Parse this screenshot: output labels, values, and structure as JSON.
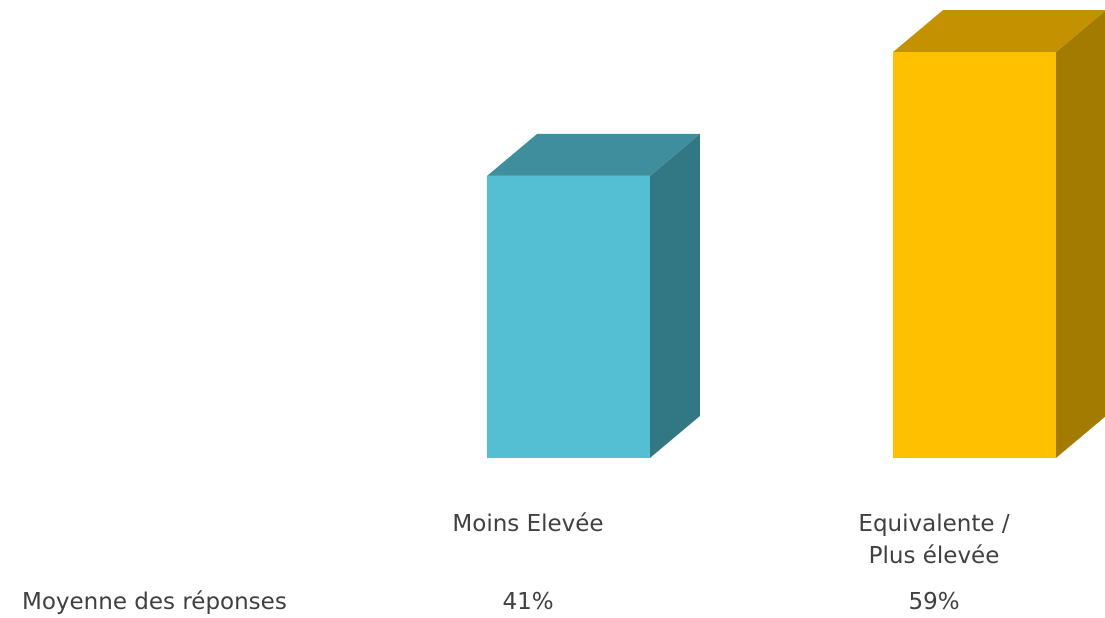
{
  "chart_data": {
    "type": "bar",
    "categories": [
      "Moins Elevée",
      "Equivalente / Plus élevée"
    ],
    "category_lines": [
      [
        "Moins Elevée"
      ],
      [
        "Equivalente /",
        "Plus élevée"
      ]
    ],
    "series": [
      {
        "values": [
          41,
          59
        ],
        "value_labels": [
          "41%",
          "59%"
        ]
      }
    ],
    "table_row_label": "Moyenne des réponses",
    "ylim": [
      0,
      59
    ],
    "grid": false,
    "legend": "none",
    "three_d": true,
    "colors": {
      "bar_front": [
        "#54BFD2",
        "#FFC000"
      ],
      "bar_top": [
        "#3F8E9D",
        "#C49200"
      ],
      "bar_side": [
        "#327884",
        "#A37B00"
      ],
      "text": "#404040"
    }
  }
}
